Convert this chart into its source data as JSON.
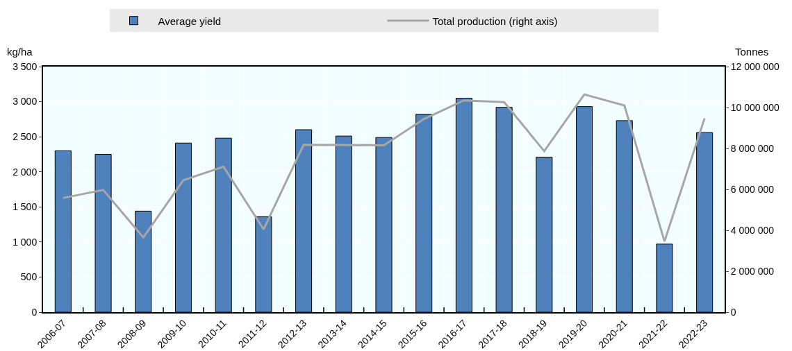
{
  "chart_data": {
    "type": "bar",
    "ylabel": "kg/ha",
    "y2label": "Tonnes",
    "categories": [
      "2006-07",
      "2007-08",
      "2008-09",
      "2009-10",
      "2010-11",
      "2011-12",
      "2012-13",
      "2013-14",
      "2014-15",
      "2015-16",
      "2016-17",
      "2017-18",
      "2018-19",
      "2019-20",
      "2020-21",
      "2021-22",
      "2022-23"
    ],
    "series": [
      {
        "name": "Average yield",
        "color": "#4f81bd",
        "values": [
          2300,
          2250,
          1440,
          2410,
          2480,
          1360,
          2600,
          2510,
          2490,
          2820,
          3050,
          2920,
          2210,
          2930,
          2730,
          970,
          2560
        ]
      },
      {
        "name": "Total production (right axis)",
        "type": "line",
        "axis": "y2",
        "color": "#a6a6a6",
        "values": [
          5580000,
          5970000,
          3650000,
          6450000,
          7110000,
          4050000,
          8180000,
          8170000,
          8150000,
          9440000,
          10350000,
          10260000,
          7870000,
          10640000,
          10100000,
          3460000,
          9470000
        ]
      }
    ],
    "ylim": [
      0,
      3500
    ],
    "yticks": [
      0,
      500,
      {
        "value": 1000,
        "label": "1 000"
      },
      {
        "value": 1500,
        "label": "1 500"
      },
      {
        "value": 2000,
        "label": "2 000"
      },
      {
        "value": 2500,
        "label": "2 500"
      },
      {
        "value": 3000,
        "label": "3 000"
      },
      {
        "value": 3500,
        "label": "3 500"
      }
    ],
    "y2lim": [
      0,
      12000000
    ],
    "y2ticks": [
      0,
      {
        "value": 2000000,
        "label": "2 000 000"
      },
      {
        "value": 4000000,
        "label": "4 000 000"
      },
      {
        "value": 6000000,
        "label": "6 000 000"
      },
      {
        "value": 8000000,
        "label": "8 000 000"
      },
      {
        "value": 10000000,
        "label": "10 000 000"
      },
      {
        "value": 12000000,
        "label": "12 000 000"
      }
    ],
    "grid": true,
    "legend": "top",
    "marker": "none",
    "line_style": "solid"
  }
}
